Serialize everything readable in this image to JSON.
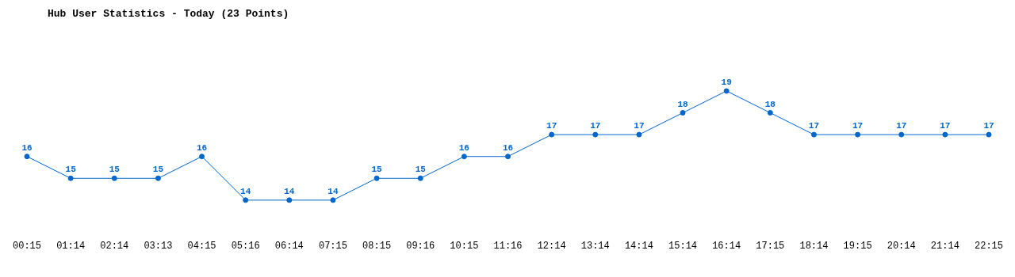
{
  "chart_data": {
    "type": "line",
    "title": "Hub User Statistics - Today (23 Points)",
    "categories": [
      "00:15",
      "01:14",
      "02:14",
      "03:13",
      "04:15",
      "05:16",
      "06:14",
      "07:15",
      "08:15",
      "09:16",
      "10:15",
      "11:16",
      "12:14",
      "13:14",
      "14:14",
      "15:14",
      "16:14",
      "17:15",
      "18:14",
      "19:15",
      "20:14",
      "21:14",
      "22:15"
    ],
    "series": [
      {
        "color": "#0066cc",
        "values": [
          16,
          15,
          15,
          15,
          16,
          14,
          14,
          14,
          15,
          15,
          16,
          16,
          17,
          17,
          17,
          18,
          19,
          18,
          17,
          17,
          17,
          17,
          17
        ]
      }
    ],
    "data_labels": true,
    "marker": "circle",
    "grid": false,
    "legend": false
  }
}
